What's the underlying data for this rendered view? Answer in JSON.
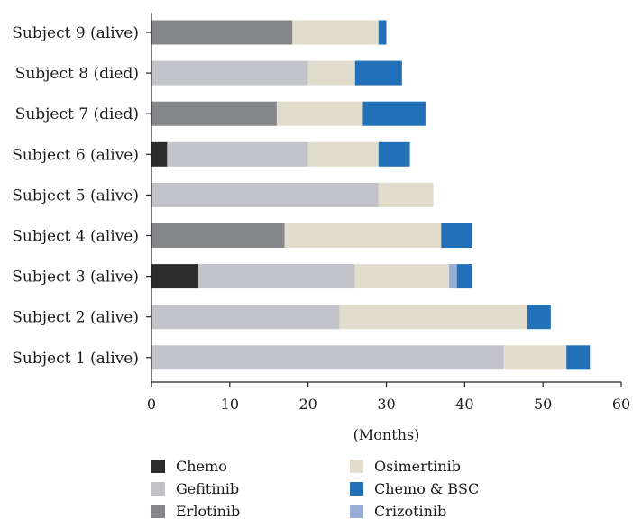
{
  "chart_data": {
    "type": "bar",
    "orientation": "horizontal",
    "stacked": true,
    "categories": [
      "Subject 9 (alive)",
      "Subject 8 (died)",
      "Subject 7 (died)",
      "Subject 6 (alive)",
      "Subject 5 (alive)",
      "Subject 4 (alive)",
      "Subject 3 (alive)",
      "Subject 2 (alive)",
      "Subject 1 (alive)"
    ],
    "series": [
      {
        "name": "Chemo",
        "color": "#2b2b2b",
        "values": [
          0,
          0,
          0,
          2,
          0,
          0,
          6,
          0,
          0
        ]
      },
      {
        "name": "Gefitinib",
        "color": "#c2c3c8",
        "values": [
          0,
          20,
          0,
          18,
          29,
          0,
          20,
          24,
          45
        ]
      },
      {
        "name": "Erlotinib",
        "color": "#85868a",
        "values": [
          18,
          0,
          16,
          0,
          0,
          17,
          0,
          0,
          0
        ]
      },
      {
        "name": "Osimertinib",
        "color": "#e1dccb",
        "values": [
          11,
          6,
          11,
          9,
          7,
          20,
          12,
          24,
          8
        ]
      },
      {
        "name": "Crizotinib",
        "color": "#98aed4",
        "values": [
          0,
          0,
          0,
          0,
          0,
          0,
          1,
          0,
          0
        ]
      },
      {
        "name": "Chemo & BSC",
        "color": "#2271b8",
        "values": [
          1,
          6,
          8,
          4,
          0,
          4,
          2,
          3,
          3
        ]
      }
    ],
    "xlabel": "(Months)",
    "ylabel": "",
    "xlim": [
      0,
      60
    ],
    "xticks": [
      0,
      10,
      20,
      30,
      40,
      50,
      60
    ],
    "grid": false,
    "legend": {
      "placement": "bottom",
      "columns": [
        [
          "Chemo",
          "Gefitinib",
          "Erlotinib"
        ],
        [
          "Osimertinib",
          "Chemo & BSC",
          "Crizotinib"
        ]
      ]
    }
  }
}
